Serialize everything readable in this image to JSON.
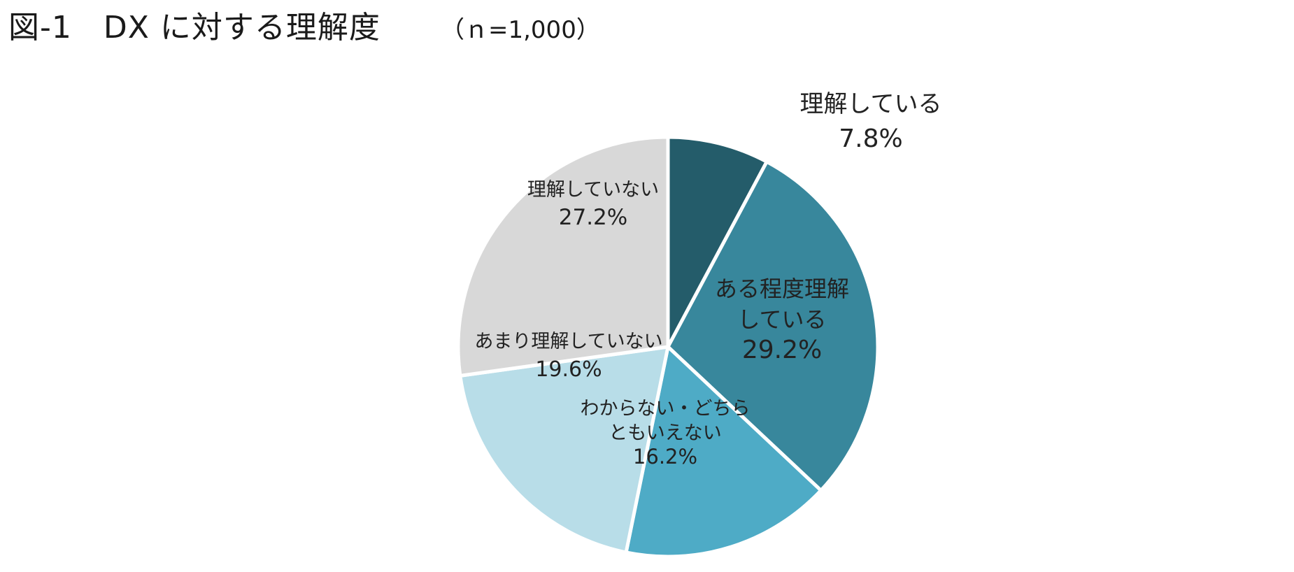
{
  "chart_data": {
    "type": "pie",
    "title": "図-1　DX に対する理解度",
    "subtitle": "（ｎ=1,000）",
    "unit": "%",
    "slices": [
      {
        "label_lines": [
          "理解している"
        ],
        "value": 7.8,
        "value_label": "7.8%",
        "color": "#245c6a",
        "label_position": "outside"
      },
      {
        "label_lines": [
          "ある程度理解",
          "している"
        ],
        "value": 29.2,
        "value_label": "29.2%",
        "color": "#38879c",
        "label_position": "inside"
      },
      {
        "label_lines": [
          "わからない・どちら",
          "ともいえない"
        ],
        "value": 16.2,
        "value_label": "16.2%",
        "color": "#4eabc6",
        "label_position": "inside"
      },
      {
        "label_lines": [
          "あまり理解していない"
        ],
        "value": 19.6,
        "value_label": "19.6%",
        "color": "#b8dde8",
        "label_position": "inside"
      },
      {
        "label_lines": [
          "理解していない"
        ],
        "value": 27.2,
        "value_label": "27.2%",
        "color": "#d8d8d8",
        "label_position": "inside"
      }
    ],
    "start_angle_deg": 0,
    "direction": "clockwise",
    "legend": "none"
  }
}
